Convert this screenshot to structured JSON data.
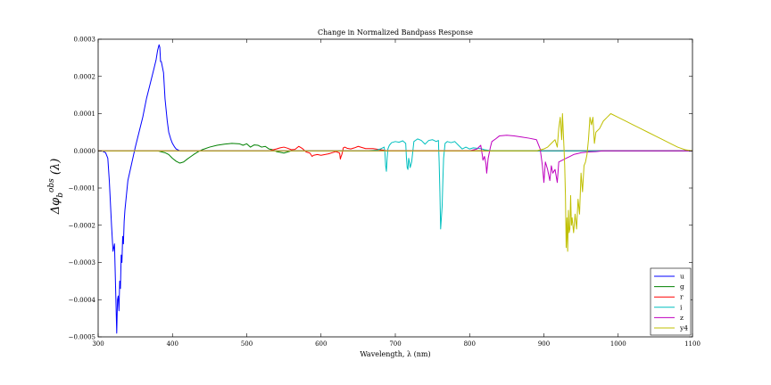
{
  "chart_data": {
    "type": "line",
    "title": "Change in Normalized Bandpass Response",
    "xlabel": "Wavelength, λ (nm)",
    "ylabel": "Δφ_b^obs (λ)",
    "ylabel_parts": {
      "delta": "Δφ",
      "sub": "b",
      "sup": "obs",
      "arg": " (λ)"
    },
    "xlim": [
      300,
      1100
    ],
    "ylim": [
      -0.0005,
      0.0003
    ],
    "xticks": [
      300,
      400,
      500,
      600,
      700,
      800,
      900,
      1000,
      1100
    ],
    "yticks": [
      -0.0005,
      -0.0004,
      -0.0003,
      -0.0002,
      -0.0001,
      0.0,
      0.0001,
      0.0002,
      0.0003
    ],
    "ytick_labels": [
      "−0.0005",
      "−0.0004",
      "−0.0003",
      "−0.0002",
      "−0.0001",
      "0.0000",
      "0.0001",
      "0.0002",
      "0.0003"
    ],
    "legend_position": "lower-right",
    "grid": false,
    "series": [
      {
        "name": "u",
        "color": "#0000ff",
        "x": [
          300,
          305,
          310,
          313,
          315,
          318,
          320,
          322,
          324,
          325,
          326,
          327,
          328,
          329,
          330,
          331,
          332,
          333,
          334,
          335,
          336,
          338,
          340,
          345,
          350,
          355,
          360,
          365,
          370,
          375,
          378,
          380,
          382,
          383,
          384,
          385,
          386,
          388,
          390,
          393,
          395,
          398,
          400,
          403,
          405,
          410,
          415,
          420,
          430,
          1100
        ],
        "y": [
          0,
          0,
          -5e-06,
          -2e-05,
          -8e-05,
          -0.0002,
          -0.00027,
          -0.00025,
          -0.00041,
          -0.00049,
          -0.0004,
          -0.00039,
          -0.00043,
          -0.00035,
          -0.00037,
          -0.00028,
          -0.0003,
          -0.00023,
          -0.00025,
          -0.00019,
          -0.00016,
          -0.00012,
          -8e-05,
          -3.5e-05,
          1e-05,
          5e-05,
          9e-05,
          0.00014,
          0.00018,
          0.00022,
          0.000245,
          0.00027,
          0.000285,
          0.000278,
          0.00024,
          0.00024,
          0.00023,
          0.00021,
          0.00014,
          8e-05,
          5e-05,
          3e-05,
          2e-05,
          1e-05,
          5e-06,
          0,
          0,
          0,
          0,
          0
        ]
      },
      {
        "name": "g",
        "color": "#008000",
        "x": [
          300,
          380,
          390,
          395,
          400,
          405,
          410,
          415,
          420,
          425,
          430,
          435,
          440,
          450,
          460,
          470,
          480,
          490,
          495,
          500,
          505,
          510,
          515,
          520,
          525,
          530,
          535,
          540,
          545,
          550,
          555,
          560,
          570,
          1100
        ],
        "y": [
          0,
          0,
          -5e-06,
          -1e-05,
          -2e-05,
          -2.8e-05,
          -3.3e-05,
          -3e-05,
          -2.2e-05,
          -1.5e-05,
          -8e-06,
          -2e-06,
          3e-06,
          1e-05,
          1.5e-05,
          1.8e-05,
          2e-05,
          1.9e-05,
          1.5e-05,
          1.9e-05,
          1e-05,
          1.6e-05,
          1.5e-05,
          1e-05,
          1.2e-05,
          5e-06,
          3e-06,
          -2e-06,
          -4e-06,
          -6e-06,
          -3e-06,
          0,
          0,
          0
        ]
      },
      {
        "name": "r",
        "color": "#ff0000",
        "x": [
          300,
          530,
          540,
          545,
          550,
          555,
          560,
          565,
          570,
          575,
          580,
          585,
          588,
          590,
          595,
          600,
          610,
          620,
          625,
          626,
          627,
          628,
          629,
          630,
          632,
          635,
          640,
          645,
          650,
          660,
          670,
          680,
          690,
          1100
        ],
        "y": [
          0,
          0,
          5e-06,
          8e-06,
          1e-05,
          7e-06,
          3e-06,
          4e-06,
          1.2e-05,
          6e-06,
          -3e-06,
          -6e-06,
          -1.5e-05,
          -1.2e-05,
          -1e-05,
          -1.2e-05,
          -8e-06,
          -2e-06,
          -6e-06,
          -2.2e-05,
          -1.5e-05,
          -1e-05,
          -2e-06,
          8e-06,
          1e-05,
          7e-06,
          5e-06,
          8e-06,
          1.2e-05,
          6e-06,
          6e-06,
          3e-06,
          0,
          0
        ]
      },
      {
        "name": "i",
        "color": "#00bfbf",
        "x": [
          300,
          660,
          675,
          680,
          685,
          686,
          687,
          688,
          689,
          690,
          692,
          695,
          700,
          705,
          710,
          714,
          715,
          716,
          717,
          718,
          719,
          720,
          722,
          725,
          730,
          735,
          740,
          745,
          750,
          755,
          758,
          759,
          760,
          761,
          762,
          763,
          764,
          765,
          767,
          770,
          775,
          780,
          785,
          790,
          795,
          800,
          805,
          810,
          815,
          820,
          830,
          1100
        ],
        "y": [
          0,
          0,
          2e-06,
          5e-06,
          1e-05,
          -5e-06,
          -4e-05,
          -5.5e-05,
          -2e-05,
          5e-06,
          1.5e-05,
          2.2e-05,
          2.5e-05,
          2.3e-05,
          2.7e-05,
          2e-05,
          -2e-05,
          -4.5e-05,
          -5e-05,
          -2e-05,
          -3e-05,
          -4.5e-05,
          -3e-05,
          2.5e-05,
          3.2e-05,
          2.8e-05,
          1.8e-05,
          2.8e-05,
          3e-05,
          2.5e-05,
          2.8e-05,
          -3e-05,
          -0.00011,
          -0.00021,
          -0.00018,
          -0.00015,
          -8e-05,
          -2e-05,
          2e-05,
          2.5e-05,
          2.2e-05,
          2.5e-05,
          1.5e-05,
          5e-06,
          1e-05,
          5e-06,
          8e-06,
          7e-06,
          6e-06,
          3e-06,
          0,
          0
        ]
      },
      {
        "name": "z",
        "color": "#bf00bf",
        "x": [
          300,
          800,
          810,
          815,
          817,
          818,
          820,
          822,
          823,
          825,
          828,
          830,
          835,
          840,
          850,
          860,
          870,
          880,
          890,
          895,
          898,
          900,
          902,
          905,
          908,
          910,
          912,
          915,
          918,
          920,
          925,
          930,
          935,
          940,
          950,
          960,
          970,
          980,
          990,
          1000,
          1050,
          1100
        ],
        "y": [
          0,
          0,
          5e-06,
          1.5e-05,
          -1e-05,
          -2.5e-05,
          -1.5e-05,
          -3.5e-05,
          -6e-05,
          -2e-05,
          1e-05,
          2.5e-05,
          3.2e-05,
          4e-05,
          4.2e-05,
          4e-05,
          3.7e-05,
          3.4e-05,
          3e-05,
          5e-06,
          -4e-05,
          -8.5e-05,
          -3e-05,
          -5e-05,
          -8e-05,
          -4e-05,
          -6e-05,
          -5e-05,
          -8.5e-05,
          -3e-05,
          -2.5e-05,
          -2e-05,
          -1.5e-05,
          -1e-05,
          -5e-06,
          -3e-06,
          -2e-06,
          0,
          0,
          0,
          0,
          0
        ]
      },
      {
        "name": "y4",
        "color": "#bfbf00",
        "x": [
          300,
          890,
          900,
          905,
          910,
          915,
          918,
          920,
          922,
          924,
          925,
          927,
          928,
          929,
          930,
          931,
          932,
          933,
          934,
          935,
          936,
          937,
          938,
          940,
          942,
          944,
          946,
          948,
          950,
          952,
          954,
          956,
          958,
          960,
          962,
          964,
          966,
          968,
          970,
          975,
          980,
          985,
          990,
          1000,
          1010,
          1020,
          1030,
          1040,
          1050,
          1060,
          1070,
          1080,
          1090,
          1100
        ],
        "y": [
          0,
          0,
          5e-06,
          1e-05,
          2e-05,
          3e-05,
          1e-05,
          6e-05,
          9e-05,
          3e-05,
          0.0001,
          1e-05,
          -4e-05,
          -0.00012,
          -0.00026,
          -0.00018,
          -0.00027,
          -0.00016,
          -0.00022,
          -0.00021,
          -0.00012,
          -0.0002,
          -0.00018,
          -0.00022,
          -0.00017,
          -0.00021,
          -0.00013,
          -0.00017,
          -6e-05,
          -0.00011,
          -4e-05,
          -3e-05,
          -1e-05,
          3e-05,
          9e-05,
          7e-05,
          9e-05,
          2e-05,
          5e-05,
          6e-05,
          8e-05,
          9e-05,
          0.0001,
          9e-05,
          8e-05,
          7e-05,
          6e-05,
          5e-05,
          4e-05,
          3e-05,
          2e-05,
          1e-05,
          3e-06,
          0
        ]
      }
    ]
  }
}
